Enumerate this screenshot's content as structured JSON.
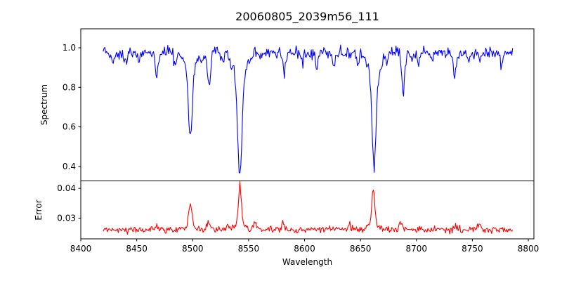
{
  "figure": {
    "background": "#ffffff",
    "text_color": "#000000",
    "spine_color": "#000000"
  },
  "chart_data": {
    "type": "line",
    "title": "20060805_2039m56_111",
    "xlabel": "Wavelength",
    "grid": false,
    "legend": "none",
    "xlim": [
      8400,
      8805
    ],
    "x_ticks": [
      8400,
      8450,
      8500,
      8550,
      8600,
      8650,
      8700,
      8750,
      8800
    ],
    "x_tick_labels": [
      "8400",
      "8450",
      "8500",
      "8550",
      "8600",
      "8650",
      "8700",
      "8750",
      "8800"
    ],
    "data_x_start": 8420,
    "data_x_end": 8786,
    "sample_step": 0.75,
    "noise_seed": 20060805,
    "panels": [
      {
        "name": "spectrum",
        "ylabel": "Spectrum",
        "ylim": [
          0.327,
          1.096
        ],
        "y_ticks": [
          0.4,
          0.6,
          0.8,
          1.0
        ],
        "y_tick_labels": [
          "0.4",
          "0.6",
          "0.8",
          "1.0"
        ],
        "color": "#0000ff",
        "continuum": 0.973,
        "noise_sigma": 0.015,
        "absorption_lines": [
          {
            "center": 8498.0,
            "depth": 0.36,
            "sigma": 1.6,
            "wing_depth": 0.085,
            "wing_sigma": 4.5
          },
          {
            "center": 8542.1,
            "depth": 0.5,
            "sigma": 1.8,
            "wing_depth": 0.135,
            "wing_sigma": 5.5
          },
          {
            "center": 8662.1,
            "depth": 0.445,
            "sigma": 1.7,
            "wing_depth": 0.12,
            "wing_sigma": 5.0
          },
          {
            "center": 8429,
            "depth": 0.055,
            "sigma": 1.0
          },
          {
            "center": 8440,
            "depth": 0.06,
            "sigma": 1.1
          },
          {
            "center": 8452,
            "depth": 0.04,
            "sigma": 1.0
          },
          {
            "center": 8468,
            "depth": 0.115,
            "sigma": 1.3
          },
          {
            "center": 8484,
            "depth": 0.05,
            "sigma": 1.0
          },
          {
            "center": 8508,
            "depth": 0.05,
            "sigma": 1.0
          },
          {
            "center": 8514.5,
            "depth": 0.165,
            "sigma": 1.4
          },
          {
            "center": 8527,
            "depth": 0.05,
            "sigma": 1.0
          },
          {
            "center": 8560,
            "depth": 0.04,
            "sigma": 1.0
          },
          {
            "center": 8582,
            "depth": 0.1,
            "sigma": 1.1
          },
          {
            "center": 8598,
            "depth": 0.05,
            "sigma": 1.0
          },
          {
            "center": 8611,
            "depth": 0.085,
            "sigma": 1.1
          },
          {
            "center": 8626,
            "depth": 0.06,
            "sigma": 1.0
          },
          {
            "center": 8648,
            "depth": 0.055,
            "sigma": 1.0
          },
          {
            "center": 8674,
            "depth": 0.05,
            "sigma": 1.0
          },
          {
            "center": 8688,
            "depth": 0.195,
            "sigma": 1.5
          },
          {
            "center": 8702,
            "depth": 0.05,
            "sigma": 1.0
          },
          {
            "center": 8713,
            "depth": 0.04,
            "sigma": 1.0
          },
          {
            "center": 8734,
            "depth": 0.115,
            "sigma": 1.3
          },
          {
            "center": 8747,
            "depth": 0.05,
            "sigma": 1.0
          },
          {
            "center": 8757,
            "depth": 0.04,
            "sigma": 1.0
          },
          {
            "center": 8776,
            "depth": 0.06,
            "sigma": 1.1
          }
        ]
      },
      {
        "name": "error",
        "ylabel": "Error",
        "ylim": [
          0.0231,
          0.0425
        ],
        "y_ticks": [
          0.03,
          0.04
        ],
        "y_tick_labels": [
          "0.03",
          "0.04"
        ],
        "color": "#ff0000",
        "baseline": 0.0262,
        "noise_sigma": 0.00055,
        "peaks": [
          {
            "center": 8498.0,
            "height": 0.008,
            "sigma": 1.3,
            "wing_height": 0.0013,
            "wing_sigma": 5.0
          },
          {
            "center": 8542.2,
            "height": 0.0135,
            "sigma": 1.2,
            "wing_height": 0.0018,
            "wing_sigma": 5.0
          },
          {
            "center": 8661.5,
            "height": 0.0125,
            "sigma": 1.2,
            "wing_height": 0.0018,
            "wing_sigma": 5.0
          },
          {
            "center": 8468,
            "height": 0.0018,
            "sigma": 1.2
          },
          {
            "center": 8514,
            "height": 0.0022,
            "sigma": 1.2
          },
          {
            "center": 8532,
            "height": 0.0015,
            "sigma": 1.0
          },
          {
            "center": 8555,
            "height": 0.0026,
            "sigma": 1.2
          },
          {
            "center": 8581,
            "height": 0.0024,
            "sigma": 1.0
          },
          {
            "center": 8620,
            "height": 0.0013,
            "sigma": 1.0
          },
          {
            "center": 8640,
            "height": 0.0016,
            "sigma": 1.0
          },
          {
            "center": 8686,
            "height": 0.0024,
            "sigma": 1.2
          },
          {
            "center": 8735,
            "height": 0.0017,
            "sigma": 1.0
          },
          {
            "center": 8756,
            "height": 0.0019,
            "sigma": 1.0
          }
        ]
      }
    ]
  }
}
